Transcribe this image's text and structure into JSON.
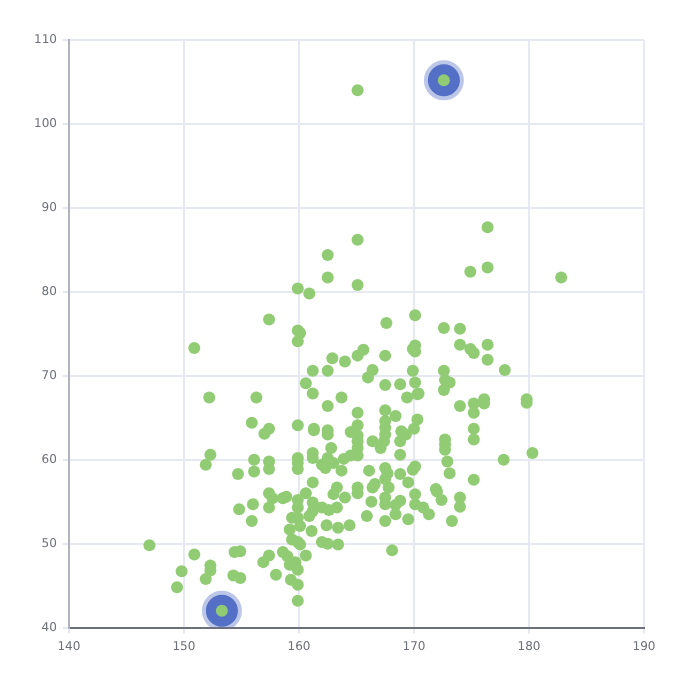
{
  "chart_data": {
    "type": "scatter",
    "xlim": [
      140,
      190
    ],
    "xticks": [
      140,
      150,
      160,
      170,
      180,
      190
    ],
    "ylim": [
      40,
      110
    ],
    "yticks": [
      40,
      50,
      60,
      70,
      80,
      90,
      100,
      110
    ],
    "grid": true,
    "legend": false,
    "marker": "circle",
    "series": [
      {
        "color": "#91cc75",
        "x": [
          165.1,
          172.6,
          176.4,
          165.1,
          162.5,
          174.9,
          176.4,
          182.8,
          162.5,
          165.1,
          159.9,
          160.9,
          157.4,
          167.6,
          170.1,
          172.6,
          174.0,
          159.9,
          160.1,
          159.9,
          150.9,
          162.9,
          164.0,
          165.1,
          165.6,
          167.5,
          166.0,
          166.4,
          169.9,
          170.1,
          170.1,
          174.0,
          174.9,
          175.2,
          176.4,
          176.4,
          172.6,
          172.7,
          173.1,
          177.9,
          169.9,
          170.1,
          170.3,
          167.5,
          168.8,
          169.4,
          170.4,
          162.5,
          161.2,
          160.6,
          161.2,
          163.7,
          162.5,
          156.3,
          152.2,
          167.5,
          165.1,
          168.4,
          172.6,
          174.0,
          175.2,
          176.1,
          176.1,
          175.2,
          179.8,
          179.8,
          155.9,
          157.4,
          157.0,
          159.9,
          161.3,
          161.3,
          162.5,
          162.5,
          164.5,
          165.1,
          165.1,
          167.5,
          167.5,
          167.5,
          168.9,
          169.3,
          170.0,
          170.3,
          175.2,
          175.2,
          168.8,
          168.8,
          172.7,
          172.7,
          172.7,
          172.9,
          173.1,
          175.2,
          177.8,
          180.3,
          167.4,
          167.1,
          166.4,
          165.1,
          165.1,
          165.1,
          162.8,
          162.5,
          163.0,
          163.9,
          164.5,
          159.9,
          159.9,
          159.9,
          161.2,
          161.2,
          162.0,
          162.3,
          163.7,
          166.1,
          167.5,
          167.7,
          170.1,
          169.9,
          168.8,
          156.1,
          156.1,
          157.4,
          157.4,
          154.7,
          152.3,
          151.9,
          161.2,
          163.3,
          163.0,
          165.1,
          165.1,
          166.4,
          166.6,
          167.5,
          167.8,
          169.5,
          171.9,
          172.0,
          172.4,
          174.0,
          174.0,
          170.1,
          170.1,
          168.8,
          168.4,
          167.5,
          167.5,
          166.3,
          164.0,
          160.6,
          159.9,
          159.9,
          158.9,
          158.6,
          157.4,
          157.7,
          157.4,
          156.0,
          154.8,
          155.9,
          161.2,
          161.2,
          162.0,
          162.6,
          163.3,
          159.9,
          159.4,
          160.9,
          165.9,
          167.5,
          168.4,
          169.5,
          170.8,
          171.3,
          173.3,
          160.1,
          159.2,
          162.4,
          163.4,
          164.4,
          161.1,
          159.4,
          159.9,
          160.1,
          162.0,
          162.5,
          163.4,
          168.1,
          147.0,
          150.9,
          154.4,
          154.9,
          157.4,
          156.9,
          158.6,
          159.0,
          160.6,
          159.2,
          159.7,
          159.9,
          158.0,
          159.3,
          159.9,
          159.9,
          152.3,
          152.3,
          151.9,
          149.8,
          149.4,
          154.3,
          154.9,
          153.3
        ],
        "values": [
          104.0,
          105.2,
          87.7,
          86.2,
          84.4,
          82.4,
          82.9,
          81.7,
          81.7,
          80.8,
          80.4,
          79.8,
          76.7,
          76.3,
          77.2,
          75.7,
          75.6,
          75.4,
          75.1,
          74.1,
          73.3,
          72.1,
          71.7,
          72.4,
          73.1,
          72.4,
          69.8,
          70.7,
          73.2,
          73.6,
          72.9,
          73.7,
          73.2,
          72.7,
          73.7,
          71.9,
          70.6,
          69.5,
          69.2,
          70.7,
          70.6,
          69.2,
          67.8,
          68.9,
          69.0,
          67.4,
          67.9,
          70.6,
          70.6,
          69.1,
          67.9,
          67.4,
          66.4,
          67.4,
          67.4,
          65.9,
          65.6,
          65.2,
          68.3,
          66.4,
          66.7,
          67.2,
          66.7,
          65.6,
          67.2,
          66.8,
          64.4,
          63.7,
          63.1,
          64.1,
          63.7,
          63.5,
          63.5,
          63.0,
          63.3,
          64.1,
          62.9,
          64.6,
          63.8,
          63.0,
          63.4,
          63.0,
          63.7,
          64.8,
          63.7,
          62.4,
          62.2,
          60.6,
          62.4,
          61.8,
          61.2,
          59.8,
          58.4,
          57.6,
          60.0,
          60.8,
          62.2,
          61.4,
          62.2,
          62.2,
          61.4,
          60.5,
          61.4,
          60.2,
          59.6,
          60.1,
          60.5,
          60.2,
          59.6,
          58.9,
          60.8,
          60.2,
          59.4,
          59.0,
          58.7,
          58.7,
          59.0,
          58.4,
          59.2,
          58.8,
          58.3,
          60.0,
          58.6,
          59.8,
          58.9,
          58.3,
          60.6,
          59.4,
          57.3,
          56.7,
          55.9,
          56.7,
          56.0,
          56.7,
          57.1,
          57.7,
          56.7,
          57.3,
          56.5,
          56.2,
          55.2,
          55.5,
          54.4,
          55.9,
          54.7,
          55.1,
          54.6,
          55.5,
          54.7,
          55.0,
          55.5,
          56.0,
          55.2,
          54.3,
          55.6,
          55.4,
          56.0,
          55.4,
          54.3,
          54.7,
          54.1,
          52.7,
          54.9,
          53.9,
          54.3,
          54.0,
          54.3,
          53.1,
          53.1,
          53.3,
          53.3,
          52.7,
          53.5,
          52.9,
          54.3,
          53.5,
          52.7,
          52.1,
          51.7,
          52.2,
          51.9,
          52.2,
          51.5,
          50.5,
          50.2,
          49.9,
          50.2,
          50.0,
          49.9,
          49.2,
          49.8,
          48.7,
          49.0,
          49.1,
          48.6,
          47.8,
          49.0,
          48.5,
          48.6,
          47.5,
          47.8,
          46.9,
          46.3,
          45.7,
          45.1,
          43.2,
          47.4,
          46.8,
          45.8,
          46.7,
          44.8,
          46.2,
          45.9,
          42.0
        ]
      },
      {
        "color": "#5470c6",
        "x": [
          172.6,
          153.3
        ],
        "values": [
          105.2,
          42.0
        ]
      }
    ]
  }
}
